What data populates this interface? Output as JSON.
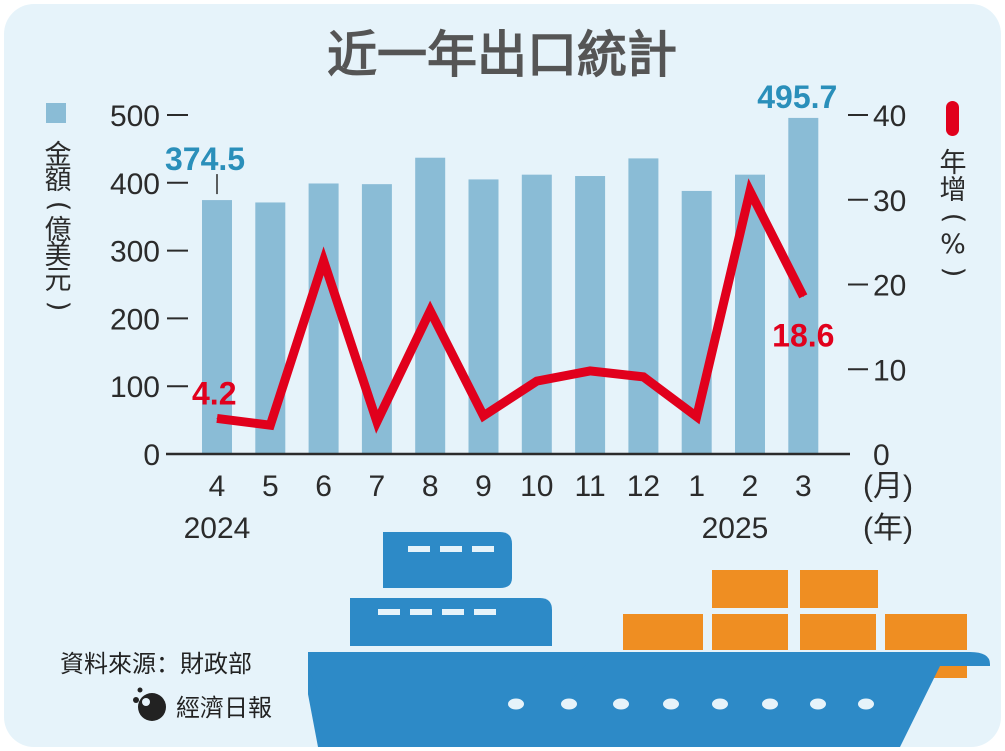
{
  "title": "近一年出口統計",
  "left_axis_label": [
    "金",
    "額",
    "(",
    "億",
    "美",
    "元",
    ")"
  ],
  "right_axis_label": [
    "年",
    "增",
    "(",
    "%",
    ")"
  ],
  "month_unit": "(月)",
  "year_unit": "(年)",
  "source": "資料來源：財政部",
  "publisher": "經濟日報",
  "colors": {
    "bar": "#8abcd6",
    "line": "#e1001c",
    "bar_label": "#2a8fba",
    "ship": "#2d8ac7",
    "container": "#ef8e22"
  },
  "chart_data": {
    "type": "bar+line",
    "title": "近一年出口統計",
    "categories": [
      "4",
      "5",
      "6",
      "7",
      "8",
      "9",
      "10",
      "11",
      "12",
      "1",
      "2",
      "3"
    ],
    "years": [
      {
        "label": "2024",
        "under": "4"
      },
      {
        "label": "2025",
        "under": "2"
      }
    ],
    "series": [
      {
        "name": "金額",
        "type": "bar",
        "axis": "left",
        "unit": "億美元",
        "values": [
          374.5,
          371,
          399,
          398,
          437,
          405,
          412,
          410,
          436,
          388,
          412,
          495.7
        ]
      },
      {
        "name": "年增",
        "type": "line",
        "axis": "right",
        "unit": "%",
        "values": [
          4.2,
          3.4,
          22.8,
          3.8,
          16.9,
          4.5,
          8.6,
          9.8,
          9.1,
          4.4,
          31.0,
          18.6
        ]
      }
    ],
    "left_axis": {
      "ylim": [
        0,
        500
      ],
      "ticks": [
        "0",
        "100",
        "200",
        "300",
        "400",
        "500"
      ]
    },
    "right_axis": {
      "ylim": [
        0,
        40
      ],
      "ticks": [
        "0",
        "10",
        "20",
        "30",
        "40"
      ]
    },
    "annotations": [
      {
        "series": "金額",
        "index": 0,
        "text": "374.5"
      },
      {
        "series": "金額",
        "index": 11,
        "text": "495.7"
      },
      {
        "series": "年增",
        "index": 0,
        "text": "4.2"
      },
      {
        "series": "年增",
        "index": 11,
        "text": "18.6"
      }
    ]
  }
}
